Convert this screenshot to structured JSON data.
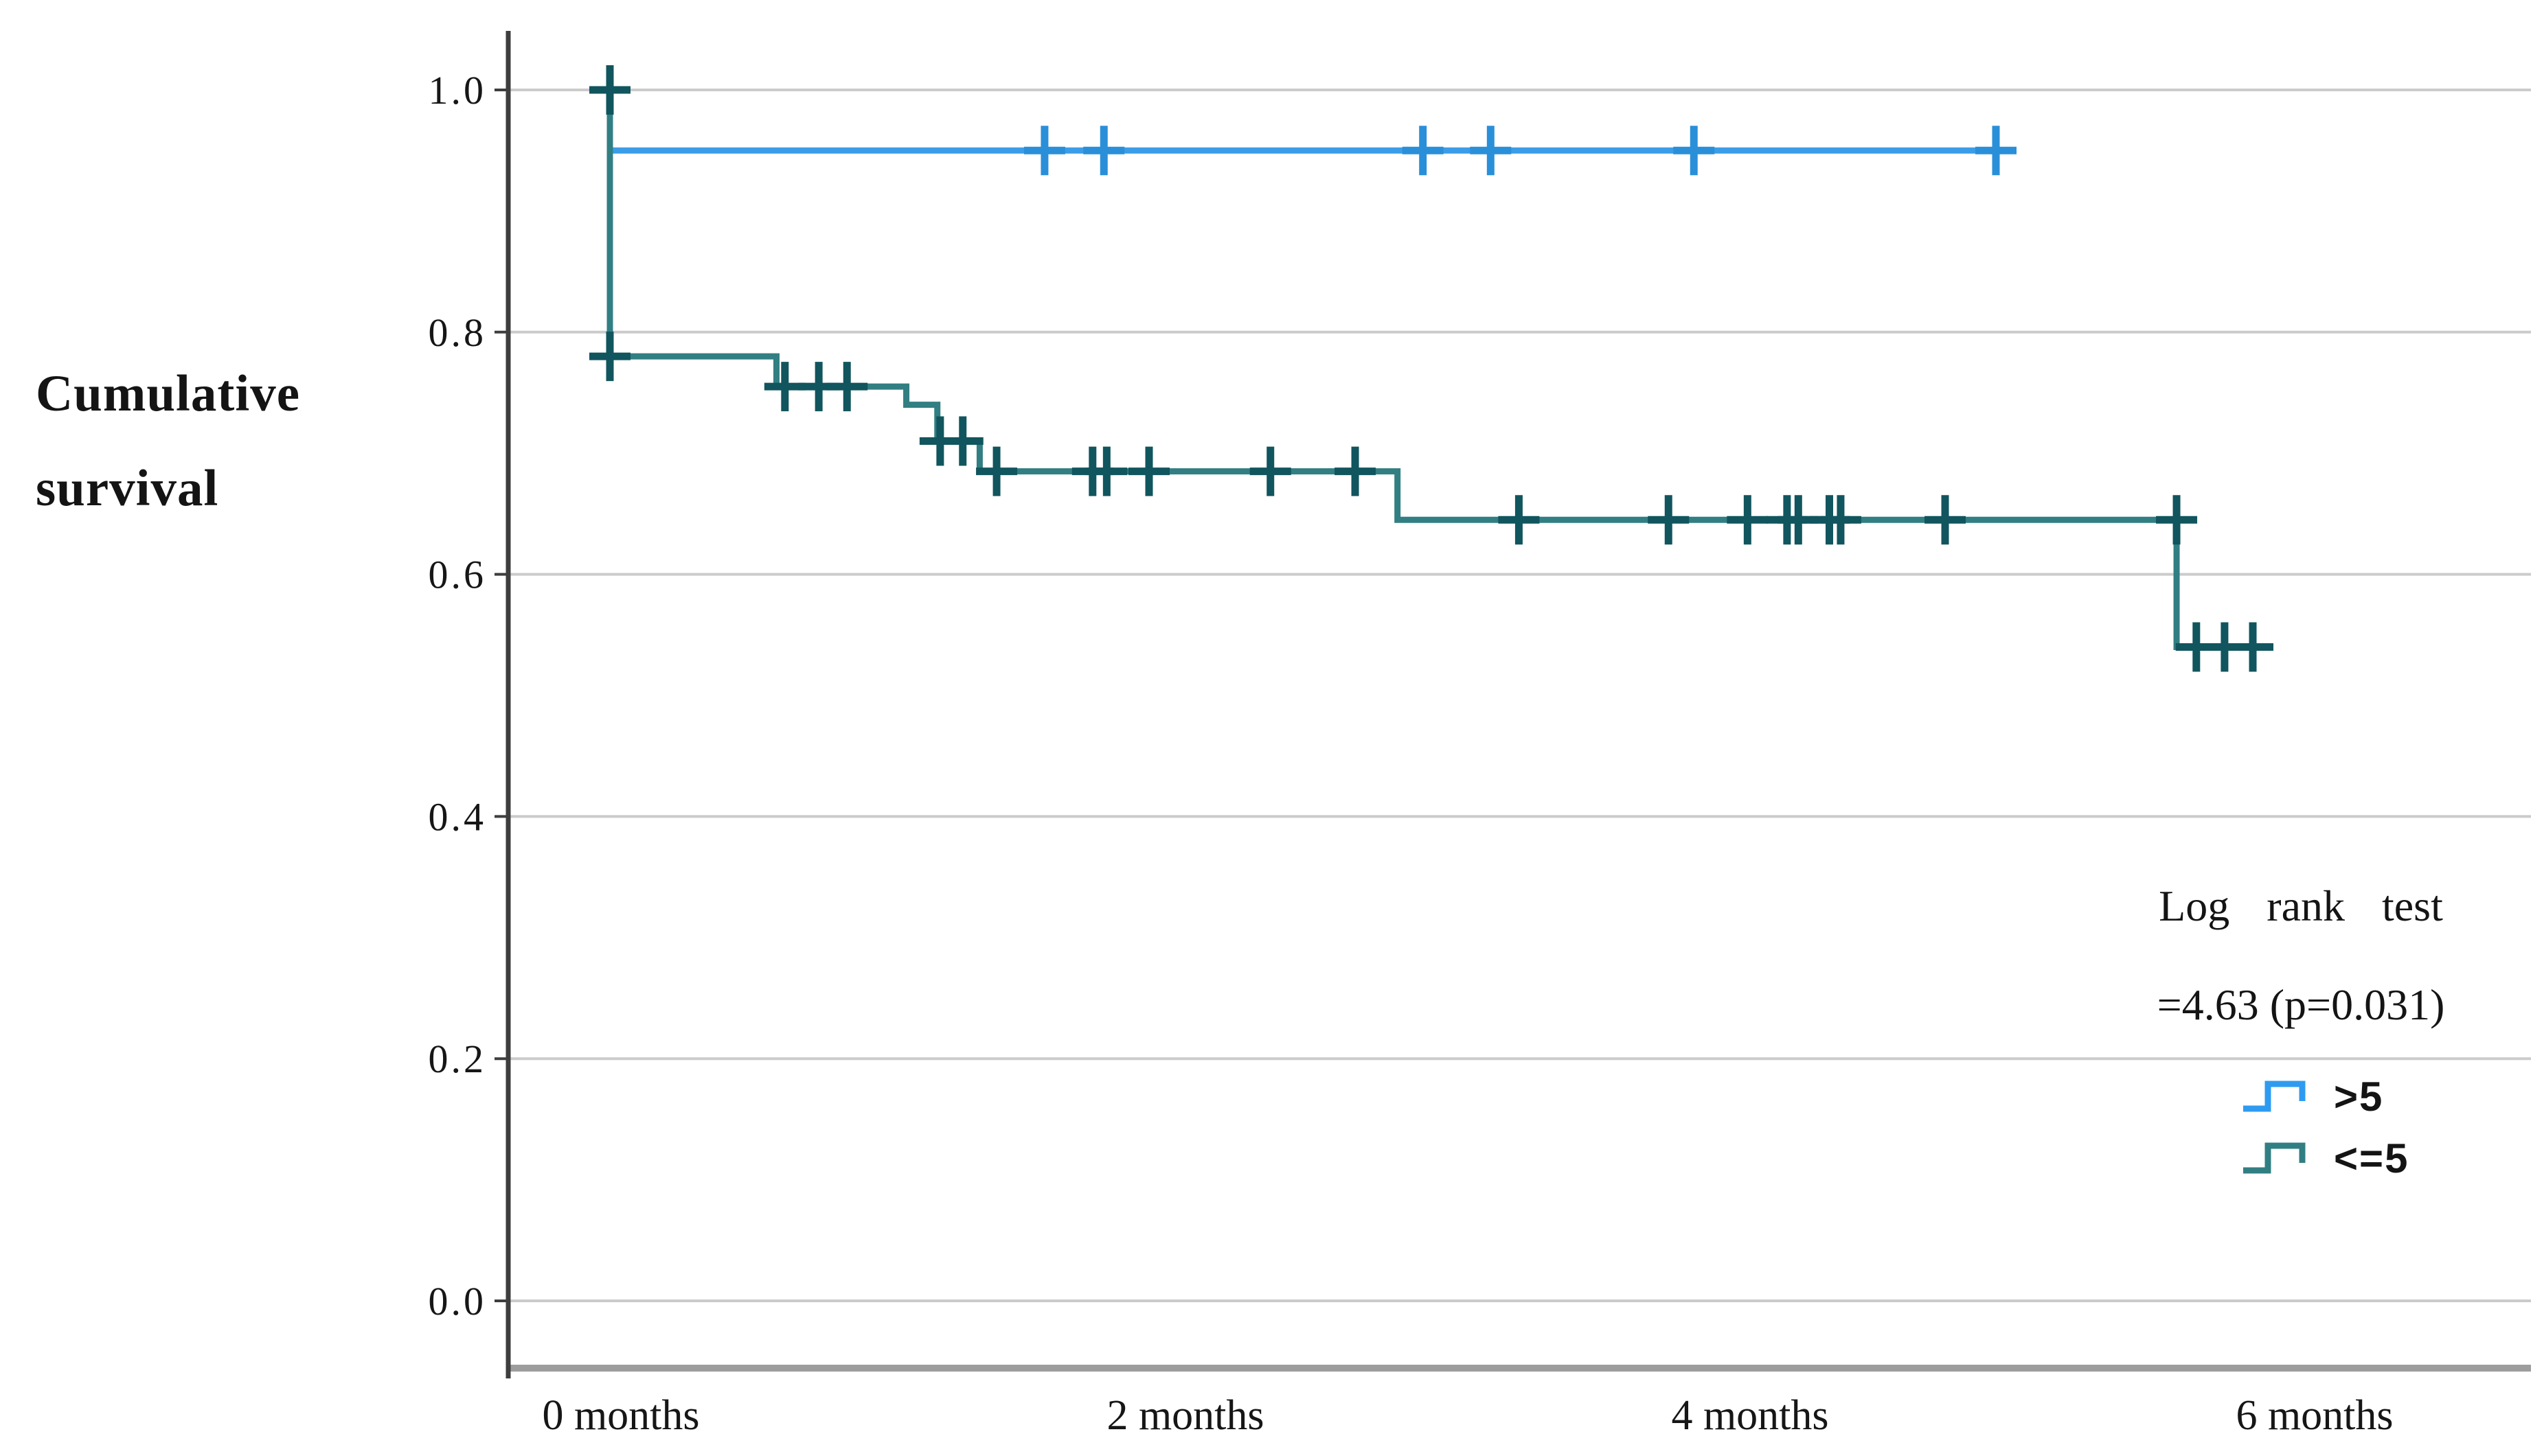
{
  "figure": {
    "background": "#ffffff",
    "text_color": "#141414"
  },
  "chart_data": {
    "type": "line",
    "subtype": "kaplan-meier-step",
    "title": "",
    "xlabel": "",
    "ylabel": "Cumulative survival",
    "ylabel_lines": [
      "Cumulative",
      "survival"
    ],
    "annotation_lines": [
      "Log rank test",
      "=4.63 (p=0.031)"
    ],
    "log_rank_test": {
      "statistic": 4.63,
      "p_value": 0.031
    },
    "x_tick_values": [
      0,
      2,
      4,
      6
    ],
    "x_tick_labels": [
      "0 months",
      "2 months",
      "4 months",
      "6 months"
    ],
    "y_ticks": [
      1.0,
      0.8,
      0.6,
      0.4,
      0.2,
      0.0
    ],
    "y_tick_labels": [
      "1.0",
      "0.8",
      "0.6",
      "0.4",
      "0.2",
      "0.0"
    ],
    "xlim": [
      0,
      6.8
    ],
    "ylim": [
      0,
      1.05
    ],
    "grid": true,
    "legend_position": "lower-right",
    "colors": {
      "grid": "#cbcbcb",
      "bottom_axis": "#9d9d9d",
      "left_axis": "#3e3e3e",
      "blue_line": "#3b9de8",
      "blue_censor": "#2a8fd9",
      "teal_line": "#317f82",
      "teal_censor": "#11555e"
    },
    "legend": [
      {
        "label": ">5",
        "color": "#2e9bf0"
      },
      {
        "label": "<=5",
        "color": "#317f82"
      }
    ],
    "series": [
      {
        "name": ">5",
        "color": "#3b9de8",
        "censor_color": "#2a8fd9",
        "steps": [
          [
            0,
            1.0
          ],
          [
            0,
            0.95
          ],
          [
            4.97,
            0.95
          ]
        ],
        "censors": [
          [
            1.54,
            0.95
          ],
          [
            1.75,
            0.95
          ],
          [
            2.88,
            0.95
          ],
          [
            3.12,
            0.95
          ],
          [
            3.84,
            0.95
          ],
          [
            4.91,
            0.95
          ]
        ]
      },
      {
        "name": "<=5",
        "color": "#317f82",
        "censor_color": "#11555e",
        "steps": [
          [
            0,
            1.0
          ],
          [
            0,
            0.78
          ],
          [
            0.59,
            0.78
          ],
          [
            0.59,
            0.755
          ],
          [
            1.05,
            0.755
          ],
          [
            1.05,
            0.74
          ],
          [
            1.16,
            0.74
          ],
          [
            1.16,
            0.71
          ],
          [
            1.31,
            0.71
          ],
          [
            1.31,
            0.685
          ],
          [
            2.79,
            0.685
          ],
          [
            2.79,
            0.645
          ],
          [
            5.55,
            0.645
          ],
          [
            5.55,
            0.54
          ],
          [
            5.88,
            0.54
          ]
        ],
        "censors": [
          [
            0,
            1.0
          ],
          [
            0,
            0.78
          ],
          [
            0.62,
            0.755
          ],
          [
            0.74,
            0.755
          ],
          [
            0.84,
            0.755
          ],
          [
            1.17,
            0.71
          ],
          [
            1.25,
            0.71
          ],
          [
            1.37,
            0.685
          ],
          [
            1.71,
            0.685
          ],
          [
            1.76,
            0.685
          ],
          [
            1.91,
            0.685
          ],
          [
            2.34,
            0.685
          ],
          [
            2.64,
            0.685
          ],
          [
            3.22,
            0.645
          ],
          [
            3.75,
            0.645
          ],
          [
            4.03,
            0.645
          ],
          [
            4.17,
            0.645
          ],
          [
            4.21,
            0.645
          ],
          [
            4.32,
            0.645
          ],
          [
            4.36,
            0.645
          ],
          [
            4.73,
            0.645
          ],
          [
            5.55,
            0.645
          ],
          [
            5.62,
            0.54
          ],
          [
            5.72,
            0.54
          ],
          [
            5.82,
            0.54
          ]
        ]
      }
    ]
  }
}
